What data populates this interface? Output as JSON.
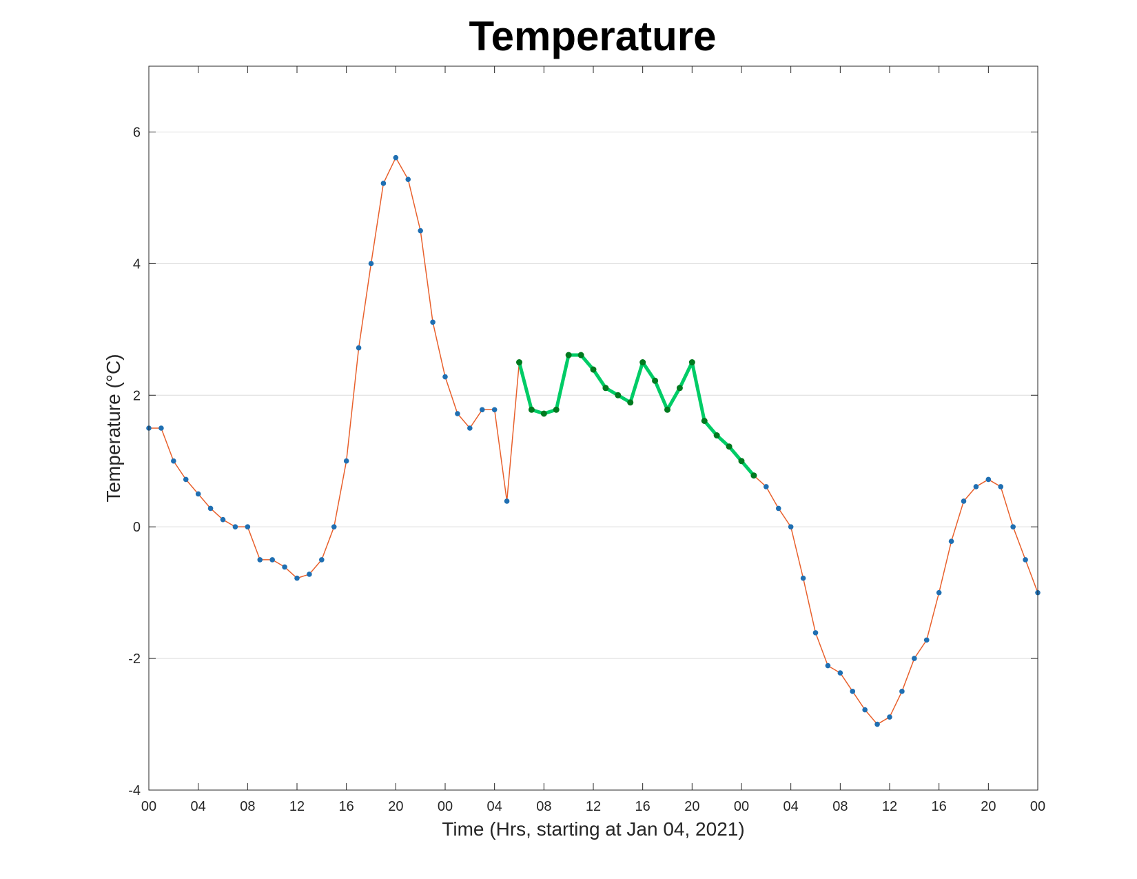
{
  "chart_data": {
    "type": "line",
    "title": "Temperature",
    "xlabel": "Time (Hrs, starting at Jan 04, 2021)",
    "ylabel": "Temperature (°C)",
    "ylim": [
      -4,
      7
    ],
    "xlim": [
      0,
      72
    ],
    "grid": "horizontal",
    "y_ticks": [
      "-4",
      "-2",
      "0",
      "2",
      "4",
      "6"
    ],
    "x_ticks": [
      "00",
      "04",
      "08",
      "12",
      "16",
      "20",
      "00",
      "04",
      "08",
      "12",
      "16",
      "20",
      "00",
      "04",
      "08",
      "12",
      "16",
      "20",
      "00"
    ],
    "colors": {
      "line": "#e8602c",
      "marker": "#1f6fb2",
      "highlight_line": "#00cc66",
      "highlight_marker": "#007a1f",
      "grid": "#dcdcdc"
    },
    "series": [
      {
        "values": [
          1.5,
          1.5,
          1.0,
          0.72,
          0.5,
          0.28,
          0.11,
          0.0,
          0.0,
          -0.5,
          -0.5,
          -0.61,
          -0.78,
          -0.72,
          -0.5,
          0.0,
          1.0,
          2.72,
          4.0,
          5.22,
          5.61,
          5.28,
          4.5,
          3.11,
          2.28,
          1.72,
          1.5,
          1.78,
          1.78,
          0.39,
          2.5,
          1.78,
          1.72,
          1.78,
          2.61,
          2.61,
          2.39,
          2.11,
          2.0,
          1.89,
          2.5,
          2.22,
          1.78,
          2.11,
          2.5,
          1.61,
          1.39,
          1.22,
          1.0,
          0.78,
          0.61,
          0.28,
          0.0,
          -0.78,
          -1.61,
          -2.11,
          -2.22,
          -2.5,
          -2.78,
          -3.0,
          -2.89,
          -2.5,
          -2.0,
          -1.72,
          -1.0,
          -0.22,
          0.39,
          0.61,
          0.72,
          0.61,
          0.0,
          -0.5,
          -1.0
        ]
      }
    ],
    "highlight_range": [
      30,
      49
    ]
  }
}
